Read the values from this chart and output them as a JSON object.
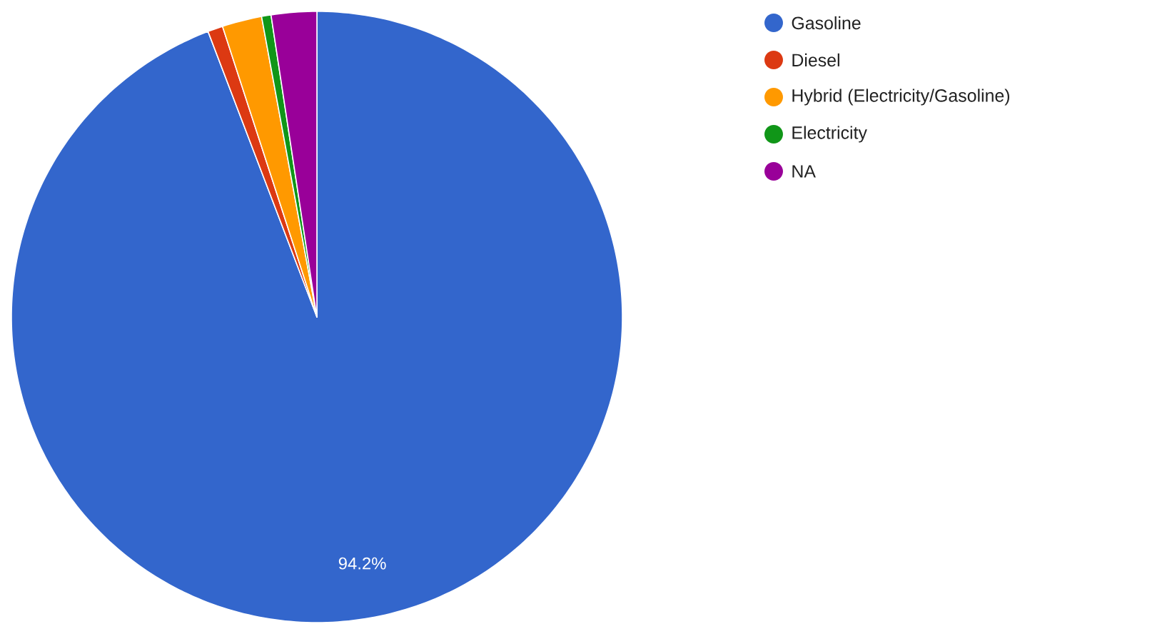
{
  "chart_data": {
    "type": "pie",
    "categories": [
      "Gasoline",
      "Diesel",
      "Hybrid (Electricity/Gasoline)",
      "Electricity",
      "NA"
    ],
    "values": [
      94.2,
      0.8,
      2.1,
      0.5,
      2.4
    ],
    "colors": [
      "#3366cc",
      "#dc3912",
      "#ff9900",
      "#109618",
      "#990099"
    ],
    "value_labels": [
      "94.2%",
      null,
      null,
      null,
      null
    ],
    "legend": "top right"
  }
}
